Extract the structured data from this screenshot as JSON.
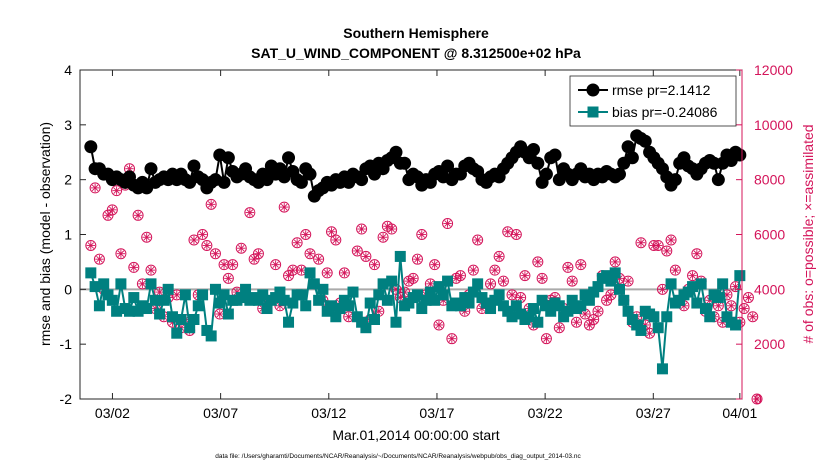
{
  "chart_data": {
    "type": "line",
    "title": "Southern Hemisphere",
    "subtitle": "SAT_U_WIND_COMPONENT @ 8.312500e+02 hPa",
    "xlabel": "Mar.01,2014 00:00:00 start",
    "ylabel_left": "rmse and bias (model - observation)",
    "ylabel_right": "# of obs: o=possible; ×=assimilated",
    "footnote": "data file: /Users/gharamti/Documents/NCAR/Reanalysis/~/Documents/NCAR/Reanalysis/webpub/obs_diag_output_2014-03.nc",
    "xlim": [
      0.5,
      31.1
    ],
    "ylim_left": [
      -2,
      4
    ],
    "ylim_right": [
      0,
      12000
    ],
    "x_ticks": [
      {
        "value": 2,
        "label": "03/02"
      },
      {
        "value": 7,
        "label": "03/07"
      },
      {
        "value": 12,
        "label": "03/12"
      },
      {
        "value": 17,
        "label": "03/17"
      },
      {
        "value": 22,
        "label": "03/22"
      },
      {
        "value": 27,
        "label": "03/27"
      },
      {
        "value": 31,
        "label": "04/01"
      }
    ],
    "y_ticks_left": [
      {
        "value": -2,
        "label": "-2"
      },
      {
        "value": -1,
        "label": "-1"
      },
      {
        "value": 0,
        "label": "0"
      },
      {
        "value": 1,
        "label": "1"
      },
      {
        "value": 2,
        "label": "2"
      },
      {
        "value": 3,
        "label": "3"
      },
      {
        "value": 4,
        "label": "4"
      }
    ],
    "y_ticks_right": [
      {
        "value": 0,
        "label": "0"
      },
      {
        "value": 2000,
        "label": "2000"
      },
      {
        "value": 4000,
        "label": "4000"
      },
      {
        "value": 6000,
        "label": "6000"
      },
      {
        "value": 8000,
        "label": "8000"
      },
      {
        "value": 10000,
        "label": "10000"
      },
      {
        "value": 12000,
        "label": "12000"
      }
    ],
    "legend": {
      "position": "top-right",
      "entries": [
        "rmse pr=2.1412",
        "bias pr=-0.24086"
      ]
    },
    "colors": {
      "rmse": "#000000",
      "bias": "#008080",
      "obs": "#d4145a",
      "zero_line": "#aaaaaa"
    },
    "series": [
      {
        "name": "rmse pr=2.1412",
        "axis": "left",
        "marker": "circle",
        "values": [
          2.6,
          2.2,
          2.2,
          2.1,
          2.1,
          2.0,
          2.05,
          2.0,
          1.95,
          2.05,
          1.9,
          1.85,
          1.95,
          1.85,
          2.2,
          1.95,
          2.0,
          2.05,
          2.0,
          2.1,
          2.0,
          2.1,
          2.0,
          1.95,
          2.25,
          2.05,
          2.0,
          1.85,
          1.95,
          2.0,
          2.45,
          1.95,
          2.4,
          2.15,
          2.05,
          2.1,
          2.2,
          2.05,
          2.0,
          1.95,
          2.1,
          2.0,
          2.25,
          2.1,
          2.2,
          2.05,
          2.4,
          2.15,
          2.0,
          1.95,
          2.2,
          2.1,
          1.7,
          1.8,
          1.85,
          1.95,
          1.9,
          2.0,
          1.95,
          2.05,
          1.95,
          2.1,
          2.05,
          2.0,
          2.2,
          2.25,
          2.1,
          2.3,
          2.2,
          2.35,
          2.4,
          2.5,
          2.3,
          2.3,
          2.0,
          2.1,
          2.05,
          1.9,
          2.0,
          1.95,
          2.1,
          2.15,
          2.05,
          2.25,
          2.0,
          2.1,
          2.1,
          2.25,
          2.3,
          2.2,
          2.15,
          2.0,
          1.95,
          2.05,
          2.1,
          2.05,
          2.2,
          2.3,
          2.4,
          2.5,
          2.6,
          2.5,
          2.4,
          2.55,
          2.3,
          1.95,
          2.1,
          2.4,
          2.45,
          2.0,
          2.2,
          2.1,
          2.0,
          2.1,
          2.2,
          2.05,
          2.1,
          2.0,
          2.1,
          2.05,
          2.15,
          2.1,
          2.05,
          2.1,
          2.3,
          2.6,
          2.4,
          2.8,
          2.75,
          2.7,
          2.5,
          2.4,
          2.3,
          2.2,
          2.05,
          1.9,
          2.0,
          2.3,
          2.4,
          2.25,
          2.2,
          2.1,
          2.2,
          2.3,
          2.35,
          2.3,
          2.0,
          2.3,
          2.45,
          2.35,
          2.5,
          2.45
        ]
      },
      {
        "name": "bias pr=-0.24086",
        "axis": "left",
        "marker": "square",
        "values": [
          0.3,
          0.05,
          -0.3,
          0.1,
          -0.1,
          -0.2,
          -0.4,
          0.1,
          -0.35,
          -0.4,
          -0.15,
          -0.4,
          -0.3,
          -0.35,
          0.1,
          -0.2,
          -0.45,
          -0.2,
          0.0,
          -0.5,
          -0.8,
          -0.55,
          -0.1,
          -0.7,
          -0.55,
          -0.3,
          -0.1,
          -0.75,
          -0.85,
          0.0,
          -0.25,
          -0.1,
          -0.45,
          -0.2,
          -0.2,
          -0.15,
          0.0,
          -0.2,
          -0.15,
          -0.2,
          -0.1,
          -0.35,
          -0.2,
          -0.15,
          -0.05,
          -0.2,
          -0.6,
          -0.25,
          -0.1,
          -0.1,
          -0.3,
          0.3,
          0.1,
          -0.2,
          0.0,
          -0.4,
          -0.3,
          -0.5,
          -0.35,
          -0.2,
          -0.3,
          -0.05,
          -0.5,
          -0.6,
          -0.7,
          -0.25,
          -0.55,
          -0.1,
          0.1,
          -0.2,
          0.15,
          -0.6,
          0.6,
          -0.3,
          -0.25,
          -0.15,
          -0.1,
          -0.35,
          -0.2,
          -0.05,
          -0.2,
          0.05,
          -0.1,
          0.15,
          -0.3,
          -0.25,
          -0.3,
          -0.15,
          -0.25,
          -0.05,
          0.1,
          -0.15,
          -0.25,
          -0.35,
          -0.2,
          -0.1,
          -0.3,
          -0.4,
          -0.5,
          -0.3,
          -0.45,
          -0.55,
          -0.5,
          -0.35,
          -0.6,
          -0.2,
          -0.3,
          -0.4,
          -0.25,
          -0.3,
          -0.5,
          -0.4,
          -0.2,
          -0.35,
          -0.3,
          -0.1,
          -0.2,
          -0.05,
          0.05,
          0.2,
          0.25,
          0.15,
          0.3,
          0.0,
          -0.2,
          -0.4,
          -0.55,
          -0.65,
          -0.75,
          -0.4,
          -0.45,
          -0.5,
          -0.7,
          -1.45,
          -0.5,
          0.1,
          -0.25,
          -0.2,
          -0.1,
          -0.05,
          0.05,
          -0.25,
          0.1,
          -0.35,
          -0.5,
          -0.1,
          -0.15,
          0.1,
          -0.5,
          -0.6,
          -0.65,
          0.25
        ]
      },
      {
        "name": "obs possible",
        "axis": "right",
        "marker": "circle-open",
        "values": [
          5600,
          7700,
          5100,
          4000,
          6700,
          6900,
          7600,
          5300,
          7800,
          8400,
          4800,
          6700,
          4200,
          5900,
          4700,
          3300,
          3900,
          3000,
          3700,
          2800,
          3800,
          2600,
          2900,
          2500,
          5800,
          3800,
          6000,
          5600,
          7100,
          5300,
          3100,
          4900,
          4400,
          4900,
          3900,
          5500,
          3800,
          6800,
          5100,
          5300,
          3300,
          3600,
          8200,
          4900,
          3400,
          7000,
          4500,
          4700,
          5700,
          4700,
          6000,
          5300,
          4200,
          5100,
          3600,
          4600,
          6100,
          5800,
          3500,
          4600,
          3000,
          3900,
          5400,
          6200,
          5200,
          2900,
          4900,
          3200,
          5900,
          6300,
          6200,
          4000,
          3700,
          3900,
          4300,
          4400,
          5100,
          6000,
          3800,
          4200,
          4900,
          2700,
          3600,
          6400,
          2200,
          4400,
          4500,
          3200,
          3800,
          4700,
          5800,
          3300,
          3500,
          4200,
          4700,
          5200,
          4300,
          6100,
          3800,
          6000,
          3700,
          4500,
          3300,
          2700,
          5000,
          4400,
          2200,
          3600,
          3700,
          2600,
          3300,
          4800,
          4300,
          2800,
          4900,
          3100,
          2700,
          2900,
          3200,
          4500,
          3600,
          3800,
          5000,
          4400,
          3600,
          4300,
          2800,
          3000,
          5700,
          2700,
          2400,
          5600,
          5600,
          4000,
          5400,
          5800,
          4700,
          3600,
          3400,
          4000,
          4500,
          5300,
          4300,
          3200,
          3600,
          3000,
          3400,
          2800,
          3800,
          3400,
          4100,
          2800,
          3300,
          3700,
          3000,
          0
        ]
      },
      {
        "name": "obs assimilated",
        "axis": "right",
        "marker": "star",
        "values": [
          5600,
          7700,
          5100,
          4000,
          6700,
          6900,
          7600,
          5300,
          7800,
          8400,
          4800,
          6700,
          4200,
          5900,
          4700,
          3300,
          3900,
          3000,
          3700,
          2800,
          3800,
          2600,
          2900,
          2500,
          5800,
          3800,
          6000,
          5600,
          7100,
          5300,
          3100,
          4900,
          4400,
          4900,
          3900,
          5500,
          3800,
          6800,
          5100,
          5300,
          3300,
          3600,
          8200,
          4900,
          3400,
          7000,
          4500,
          4700,
          5700,
          4700,
          6000,
          5300,
          4200,
          5100,
          3600,
          4600,
          6100,
          5800,
          3500,
          4600,
          3000,
          3900,
          5400,
          6200,
          5200,
          2900,
          4900,
          3200,
          5900,
          6300,
          6200,
          4000,
          3700,
          3900,
          4300,
          4400,
          5100,
          6000,
          3800,
          4200,
          4900,
          2700,
          3600,
          6400,
          2200,
          4400,
          4500,
          3200,
          3800,
          4700,
          5800,
          3300,
          3500,
          4200,
          4700,
          5200,
          4300,
          6100,
          3800,
          6000,
          3700,
          4500,
          3300,
          2700,
          5000,
          4400,
          2200,
          3600,
          3700,
          2600,
          3300,
          4800,
          4300,
          2800,
          4900,
          3100,
          2700,
          2900,
          3200,
          4500,
          3600,
          3800,
          5000,
          4400,
          3600,
          4300,
          2800,
          3000,
          5700,
          2700,
          2400,
          5600,
          5600,
          4000,
          5400,
          5800,
          4700,
          3600,
          3400,
          4000,
          4500,
          5300,
          4300,
          3200,
          3600,
          3000,
          3400,
          2800,
          3800,
          3400,
          4100,
          2800,
          3300,
          3700,
          3000,
          0
        ]
      }
    ]
  }
}
